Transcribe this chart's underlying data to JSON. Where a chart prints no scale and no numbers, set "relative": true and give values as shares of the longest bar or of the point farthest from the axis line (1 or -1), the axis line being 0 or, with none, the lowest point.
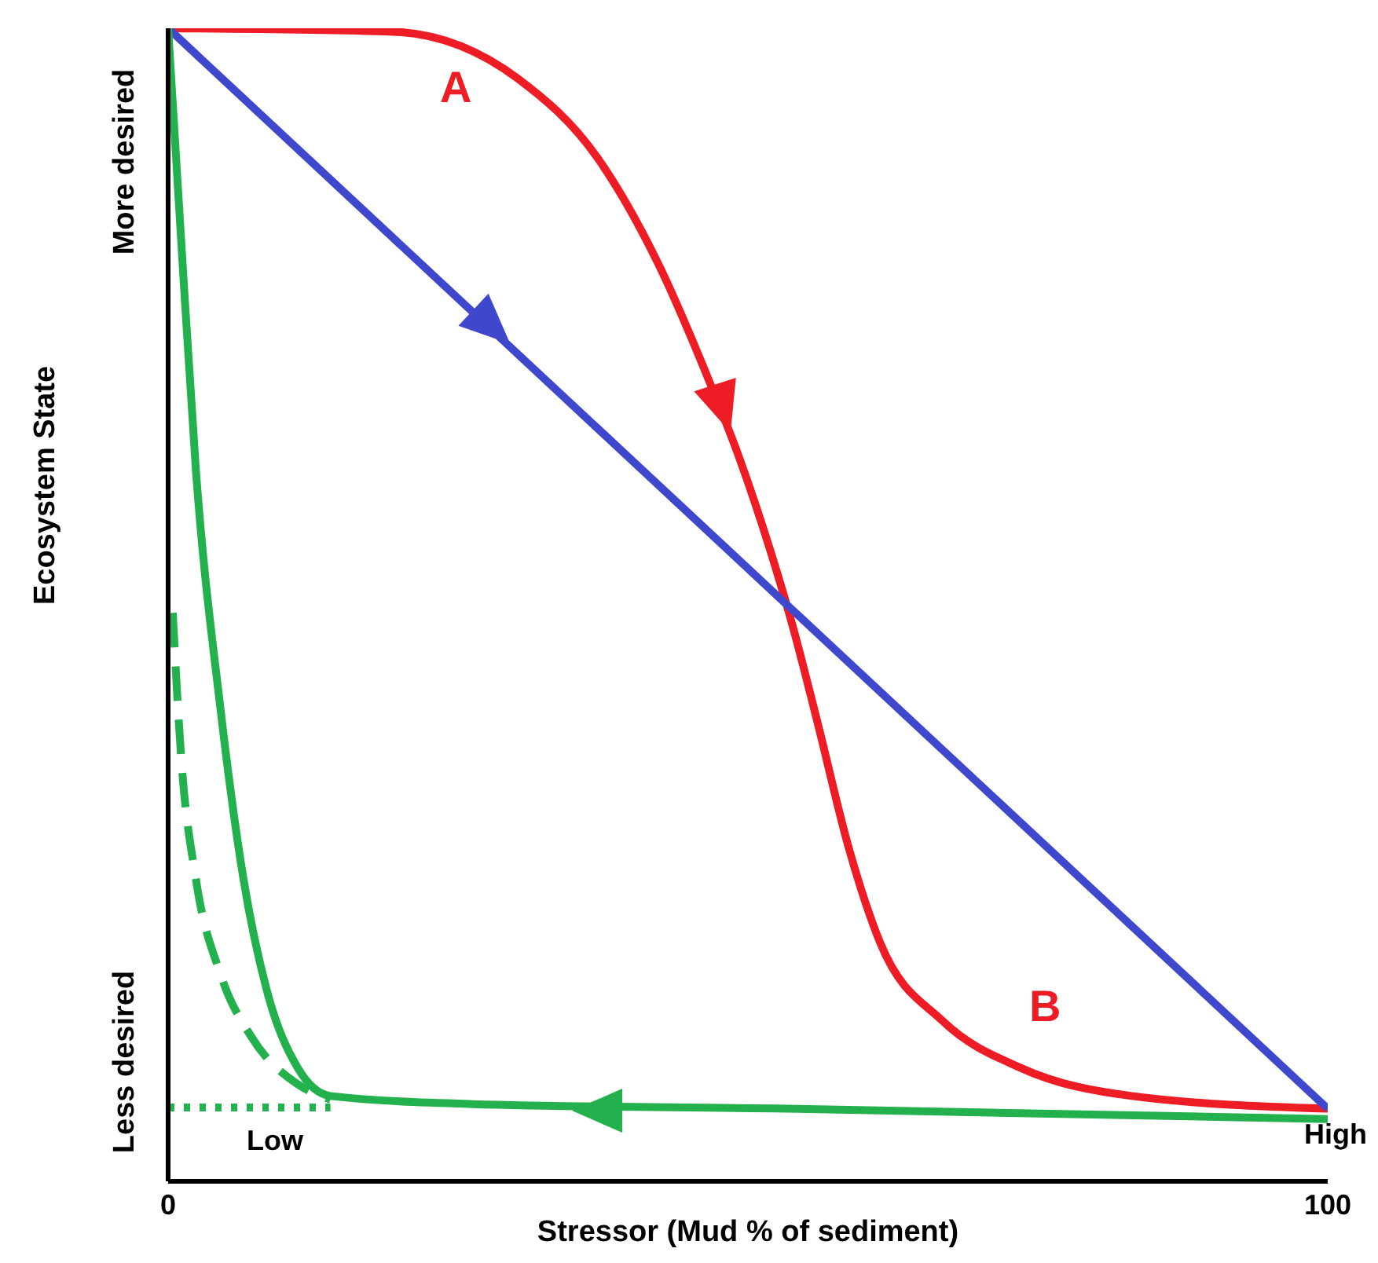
{
  "chart_data": {
    "type": "line",
    "relative": true,
    "xlabel": "Stressor (Mud % of sediment)",
    "ylabel": "Ecosystem State",
    "xlim": [
      0,
      100
    ],
    "xticks": [
      0,
      100
    ],
    "marker": "none",
    "annotations": [
      "A",
      "B",
      "More desired",
      "Less desired",
      "Low",
      "High"
    ],
    "series": [
      {
        "color": "#ee1c25",
        "line_style": "solid",
        "x": [
          0,
          19.4,
          30.2,
          37.0,
          42.4,
          46.5,
          49.2,
          51.9,
          53.9,
          56.0,
          58.7,
          61.4,
          66.8,
          73.6,
          83.1,
          100
        ],
        "values": [
          1.0,
          0.997,
          0.956,
          0.888,
          0.793,
          0.698,
          0.629,
          0.548,
          0.48,
          0.398,
          0.289,
          0.207,
          0.139,
          0.098,
          0.074,
          0.063
        ]
      },
      {
        "color": "#3f48cc",
        "line_style": "solid",
        "x": [
          0,
          100
        ],
        "values": [
          1.0,
          0.063
        ]
      },
      {
        "color": "#22b14c",
        "line_style": "solid",
        "x": [
          0,
          1.1,
          2.4,
          4.5,
          6.5,
          8.5,
          11.2,
          14.0,
          26.2,
          53.3,
          100
        ],
        "values": [
          1.0,
          0.82,
          0.616,
          0.411,
          0.262,
          0.166,
          0.098,
          0.074,
          0.067,
          0.063,
          0.054
        ]
      },
      {
        "color": "#22b14c",
        "line_style": "dashed",
        "x": [
          0.4,
          1.1,
          2.4,
          4.5,
          7.2,
          11.2,
          14.0
        ],
        "values": [
          0.493,
          0.371,
          0.262,
          0.18,
          0.125,
          0.084,
          0.071
        ]
      },
      {
        "color": "#22b14c",
        "line_style": "dotted",
        "x": [
          0,
          14.0
        ],
        "values": [
          0.064,
          0.064
        ]
      }
    ]
  }
}
